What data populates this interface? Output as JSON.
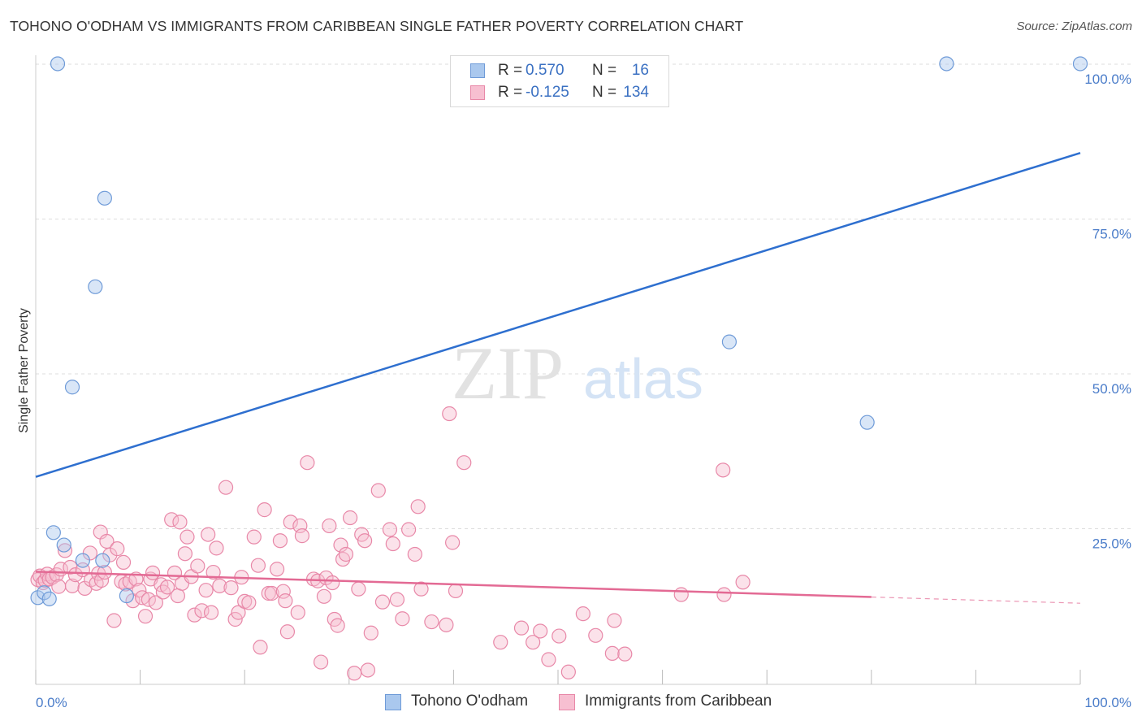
{
  "title": "TOHONO O'ODHAM VS IMMIGRANTS FROM CARIBBEAN SINGLE FATHER POVERTY CORRELATION CHART",
  "source": "Source: ZipAtlas.com",
  "watermark": {
    "zip": "ZIP",
    "atlas": "atlas"
  },
  "legend": {
    "rows": [
      {
        "r_label": "R =",
        "r_value": "0.570",
        "n_label": "N =",
        "n_value": "16"
      },
      {
        "r_label": "R =",
        "r_value": "-0.125",
        "n_label": "N =",
        "n_value": "134"
      }
    ]
  },
  "bottom_legend": [
    "Tohono O'odham",
    "Immigrants from Caribbean"
  ],
  "colors": {
    "blue_fill": "#aac8ee",
    "blue_stroke": "#6f9bd8",
    "blue_line": "#2e6fcf",
    "pink_fill": "#f7bfd1",
    "pink_stroke": "#e888a8",
    "pink_line": "#e36a94",
    "grid": "#dddddd",
    "tick_text": "#4a7cc9"
  },
  "chart_data": {
    "type": "scatter",
    "title": "TOHONO O'ODHAM VS IMMIGRANTS FROM CARIBBEAN SINGLE FATHER POVERTY CORRELATION CHART",
    "xlabel": "",
    "ylabel": "Single Father Poverty",
    "xlim": [
      0,
      100
    ],
    "ylim": [
      0,
      100
    ],
    "x_tick_labels": [
      "0.0%",
      "100.0%"
    ],
    "y_tick_labels": [
      {
        "value": 25,
        "label": "25.0%"
      },
      {
        "value": 50,
        "label": "50.0%"
      },
      {
        "value": 75,
        "label": "75.0%"
      },
      {
        "value": 100,
        "label": "100.0%"
      }
    ],
    "series": [
      {
        "name": "Tohono O'odham",
        "color": "#aac8ee",
        "R": 0.57,
        "N": 16,
        "trend": {
          "x0": 0,
          "y0": 33.5,
          "x1": 100,
          "y1": 85.8
        },
        "points": [
          [
            2.1,
            100.2
          ],
          [
            87.2,
            100.2
          ],
          [
            100,
            100.2
          ],
          [
            6.6,
            78.5
          ],
          [
            5.7,
            64.2
          ],
          [
            3.5,
            48.0
          ],
          [
            66.4,
            55.3
          ],
          [
            79.6,
            42.3
          ],
          [
            1.7,
            24.5
          ],
          [
            2.7,
            22.5
          ],
          [
            4.5,
            20.0
          ],
          [
            6.4,
            20.0
          ],
          [
            0.2,
            14.0
          ],
          [
            0.8,
            14.8
          ],
          [
            1.3,
            13.8
          ],
          [
            8.7,
            14.3
          ]
        ]
      },
      {
        "name": "Immigrants from Caribbean",
        "color": "#f7bfd1",
        "R": -0.125,
        "N": 134,
        "trend": {
          "x0": 0,
          "y0": 18.2,
          "x1": 80,
          "y1": 14.1,
          "dash_to_x": 100,
          "dash_to_y": 13.1
        },
        "points": [
          [
            0.2,
            16.9
          ],
          [
            0.4,
            17.5
          ],
          [
            0.7,
            16.4
          ],
          [
            0.9,
            16.8
          ],
          [
            1.1,
            17.8
          ],
          [
            1.3,
            17.0
          ],
          [
            1.6,
            17.3
          ],
          [
            2.0,
            17.7
          ],
          [
            2.2,
            15.8
          ],
          [
            2.4,
            18.6
          ],
          [
            2.8,
            21.6
          ],
          [
            3.3,
            18.9
          ],
          [
            3.5,
            15.9
          ],
          [
            3.8,
            17.7
          ],
          [
            4.5,
            18.5
          ],
          [
            4.7,
            15.5
          ],
          [
            5.2,
            21.2
          ],
          [
            5.3,
            16.9
          ],
          [
            5.8,
            16.3
          ],
          [
            6.0,
            17.9
          ],
          [
            6.2,
            24.6
          ],
          [
            6.3,
            16.8
          ],
          [
            6.6,
            18.1
          ],
          [
            6.8,
            23.1
          ],
          [
            7.1,
            20.9
          ],
          [
            7.5,
            10.3
          ],
          [
            7.8,
            21.9
          ],
          [
            8.2,
            16.6
          ],
          [
            8.4,
            19.7
          ],
          [
            8.6,
            16.2
          ],
          [
            9.0,
            16.6
          ],
          [
            9.3,
            13.5
          ],
          [
            9.6,
            17.0
          ],
          [
            9.9,
            15.2
          ],
          [
            10.2,
            14.0
          ],
          [
            10.5,
            11.0
          ],
          [
            10.8,
            13.7
          ],
          [
            11.0,
            17.0
          ],
          [
            11.2,
            18.0
          ],
          [
            11.5,
            13.2
          ],
          [
            12.0,
            16.1
          ],
          [
            12.2,
            14.9
          ],
          [
            12.6,
            15.7
          ],
          [
            13.0,
            26.6
          ],
          [
            13.3,
            18.0
          ],
          [
            13.6,
            14.3
          ],
          [
            13.8,
            26.2
          ],
          [
            14.0,
            16.3
          ],
          [
            14.3,
            21.1
          ],
          [
            14.5,
            23.8
          ],
          [
            14.9,
            17.4
          ],
          [
            15.2,
            11.2
          ],
          [
            15.5,
            19.1
          ],
          [
            15.9,
            11.9
          ],
          [
            16.3,
            15.2
          ],
          [
            16.5,
            24.2
          ],
          [
            16.8,
            11.6
          ],
          [
            17.0,
            18.1
          ],
          [
            17.3,
            22.0
          ],
          [
            17.6,
            15.9
          ],
          [
            18.2,
            31.8
          ],
          [
            18.7,
            15.6
          ],
          [
            19.1,
            10.5
          ],
          [
            19.4,
            11.6
          ],
          [
            19.7,
            17.3
          ],
          [
            20.0,
            13.4
          ],
          [
            20.4,
            13.2
          ],
          [
            20.9,
            23.8
          ],
          [
            21.3,
            19.2
          ],
          [
            21.5,
            6.0
          ],
          [
            21.9,
            28.2
          ],
          [
            22.3,
            14.7
          ],
          [
            22.6,
            14.7
          ],
          [
            23.1,
            18.6
          ],
          [
            23.4,
            23.2
          ],
          [
            23.7,
            15.0
          ],
          [
            23.9,
            13.5
          ],
          [
            24.1,
            8.5
          ],
          [
            24.4,
            26.2
          ],
          [
            25.1,
            11.6
          ],
          [
            25.3,
            25.6
          ],
          [
            25.5,
            24.0
          ],
          [
            26.0,
            35.8
          ],
          [
            26.6,
            17.0
          ],
          [
            27.0,
            16.7
          ],
          [
            27.3,
            3.6
          ],
          [
            27.6,
            14.2
          ],
          [
            27.8,
            17.2
          ],
          [
            28.1,
            25.6
          ],
          [
            28.4,
            16.4
          ],
          [
            28.6,
            10.5
          ],
          [
            28.9,
            9.5
          ],
          [
            29.2,
            22.5
          ],
          [
            29.4,
            20.2
          ],
          [
            29.7,
            21.0
          ],
          [
            30.1,
            26.9
          ],
          [
            30.5,
            1.8
          ],
          [
            30.9,
            15.4
          ],
          [
            31.2,
            24.2
          ],
          [
            31.5,
            23.2
          ],
          [
            31.8,
            2.3
          ],
          [
            32.1,
            8.3
          ],
          [
            32.8,
            31.3
          ],
          [
            33.2,
            13.3
          ],
          [
            33.9,
            25.0
          ],
          [
            34.2,
            22.7
          ],
          [
            34.6,
            13.7
          ],
          [
            35.1,
            10.6
          ],
          [
            35.7,
            25.0
          ],
          [
            36.3,
            21.0
          ],
          [
            36.6,
            28.7
          ],
          [
            36.9,
            15.4
          ],
          [
            37.9,
            10.1
          ],
          [
            39.3,
            9.6
          ],
          [
            39.6,
            43.7
          ],
          [
            39.9,
            22.9
          ],
          [
            40.2,
            15.1
          ],
          [
            41.0,
            35.8
          ],
          [
            44.5,
            6.8
          ],
          [
            46.5,
            9.1
          ],
          [
            47.6,
            6.8
          ],
          [
            48.3,
            8.6
          ],
          [
            49.1,
            4.0
          ],
          [
            50.1,
            7.8
          ],
          [
            51.0,
            2.0
          ],
          [
            52.4,
            11.4
          ],
          [
            53.6,
            7.9
          ],
          [
            55.2,
            5.0
          ],
          [
            55.4,
            10.3
          ],
          [
            56.4,
            4.9
          ],
          [
            61.8,
            14.5
          ],
          [
            65.8,
            34.6
          ],
          [
            65.9,
            14.5
          ],
          [
            67.7,
            16.5
          ]
        ]
      }
    ]
  }
}
